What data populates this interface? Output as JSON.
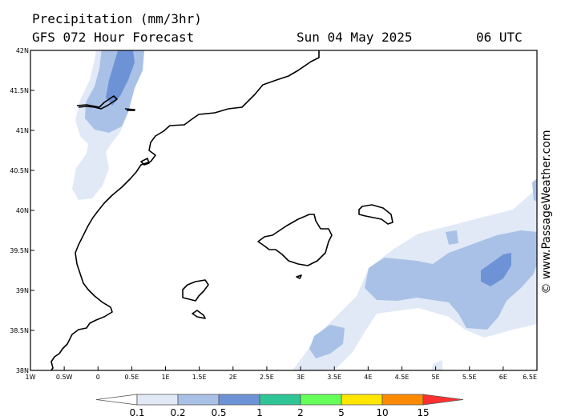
{
  "header": {
    "title": "Precipitation (mm/3hr)",
    "subtitle": "GFS 072 Hour Forecast",
    "date": "Sun 04 May 2025",
    "time": "06 UTC"
  },
  "credit": "© www.PassageWeather.com",
  "map": {
    "lon_range": [
      -1,
      6.5
    ],
    "lat_range": [
      38,
      42
    ],
    "lon_ticks": [
      "1W",
      "0.5W",
      "0",
      "0.5E",
      "1E",
      "1.5E",
      "2E",
      "2.5E",
      "3E",
      "3.5E",
      "4E",
      "4.5E",
      "5E",
      "5.5E",
      "6E",
      "6.5E"
    ],
    "lat_ticks": [
      "38N",
      "38.5N",
      "39N",
      "39.5N",
      "40N",
      "40.5N",
      "41N",
      "41.5N",
      "42N"
    ],
    "colors": {
      "level1": "#e1e9f7",
      "level2": "#a9c1e6",
      "level3": "#6d93d6",
      "coast": "#000000"
    }
  },
  "legend": {
    "labels": [
      "0.1",
      "0.2",
      "0.5",
      "1",
      "2",
      "5",
      "10",
      "15"
    ],
    "colors": [
      "#ffffff",
      "#e1e9f7",
      "#a9c1e6",
      "#6d93d6",
      "#2fc596",
      "#66ff5a",
      "#ffe600",
      "#ff8a00",
      "#ff3030"
    ]
  }
}
